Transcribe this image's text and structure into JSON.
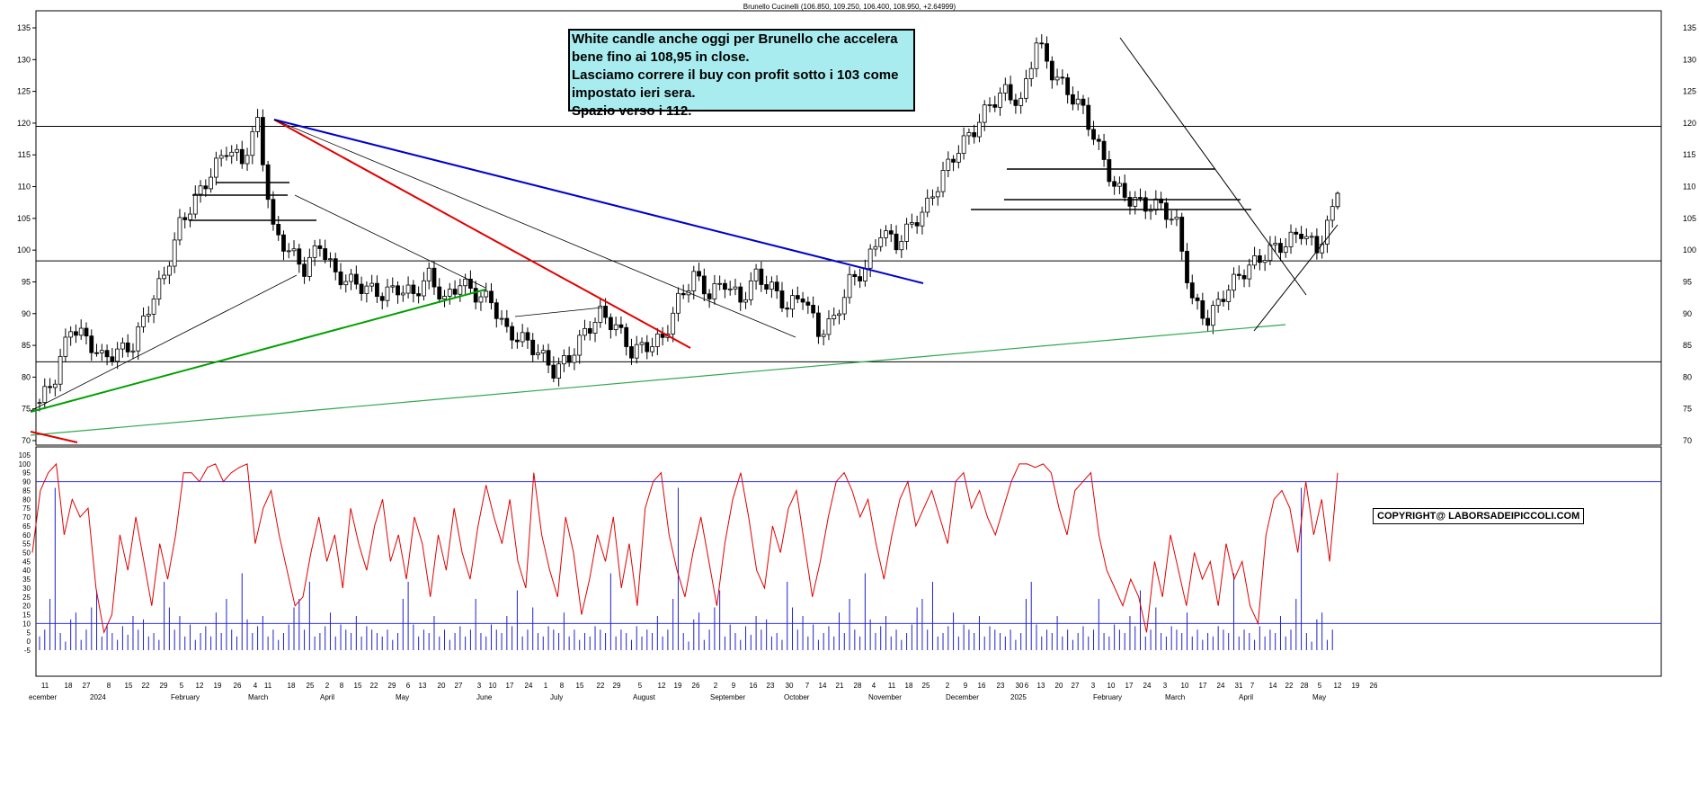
{
  "title": "Brunello Cucinelli (106.850, 109.250, 106.400, 108.950, +2.64999)",
  "annotation": {
    "lines": [
      "White candle anche oggi per Brunello che accelera",
      "bene fino ai 108,95 in close.",
      "Lasciamo correre il buy con profit sotto i 103 come",
      "impostato ieri sera.",
      "Spazio verso i 112."
    ]
  },
  "copyright": "COPYRIGHT@ LABORSADEIPICCOLI.COM",
  "chart_data": [
    {
      "type": "candlestick",
      "title": "Brunello Cucinelli (106.850, 109.250, 106.400, 108.950, +2.64999)",
      "y_ticks": [
        70,
        75,
        80,
        85,
        90,
        95,
        100,
        105,
        110,
        115,
        120,
        125,
        130,
        135
      ],
      "ylim": [
        68,
        137
      ],
      "horizontal_levels": [
        119.5,
        98.3,
        82.4
      ],
      "approx_close_path": [
        [
          0,
          76
        ],
        [
          3,
          80
        ],
        [
          6,
          88
        ],
        [
          9,
          86
        ],
        [
          12,
          83
        ],
        [
          15,
          84
        ],
        [
          18,
          85
        ],
        [
          21,
          91
        ],
        [
          24,
          96
        ],
        [
          27,
          104
        ],
        [
          30,
          108
        ],
        [
          33,
          112
        ],
        [
          36,
          116
        ],
        [
          39,
          114
        ],
        [
          42,
          120
        ],
        [
          45,
          103
        ],
        [
          48,
          100
        ],
        [
          51,
          97
        ],
        [
          54,
          101
        ],
        [
          57,
          96
        ],
        [
          60,
          95
        ],
        [
          63,
          94
        ],
        [
          66,
          93
        ],
        [
          69,
          94
        ],
        [
          72,
          93
        ],
        [
          75,
          96
        ],
        [
          78,
          92
        ],
        [
          81,
          95
        ],
        [
          84,
          93
        ],
        [
          87,
          92
        ],
        [
          90,
          87
        ],
        [
          93,
          86
        ],
        [
          96,
          84
        ],
        [
          99,
          81
        ],
        [
          102,
          83
        ],
        [
          105,
          87
        ],
        [
          108,
          90
        ],
        [
          111,
          88
        ],
        [
          114,
          84
        ],
        [
          117,
          85
        ],
        [
          120,
          86
        ],
        [
          123,
          92
        ],
        [
          126,
          96
        ],
        [
          129,
          93
        ],
        [
          132,
          95
        ],
        [
          135,
          92
        ],
        [
          138,
          96
        ],
        [
          141,
          94
        ],
        [
          144,
          91
        ],
        [
          147,
          93
        ],
        [
          150,
          87
        ],
        [
          153,
          89
        ],
        [
          156,
          95
        ],
        [
          159,
          97
        ],
        [
          162,
          103
        ],
        [
          165,
          101
        ],
        [
          168,
          104
        ],
        [
          171,
          107
        ],
        [
          174,
          112
        ],
        [
          177,
          116
        ],
        [
          180,
          119
        ],
        [
          183,
          123
        ],
        [
          186,
          125
        ],
        [
          189,
          123
        ],
        [
          192,
          133
        ],
        [
          195,
          128
        ],
        [
          198,
          125
        ],
        [
          201,
          122
        ],
        [
          204,
          116
        ],
        [
          207,
          110
        ],
        [
          210,
          108
        ],
        [
          213,
          107
        ],
        [
          216,
          107
        ],
        [
          219,
          104
        ],
        [
          222,
          92
        ],
        [
          225,
          89
        ],
        [
          228,
          93
        ],
        [
          231,
          96
        ],
        [
          234,
          98
        ],
        [
          237,
          100
        ],
        [
          240,
          101
        ],
        [
          243,
          103
        ],
        [
          246,
          100
        ],
        [
          249,
          106
        ],
        [
          250,
          108.95
        ]
      ],
      "last_candle": {
        "open": 106.85,
        "high": 109.25,
        "low": 106.4,
        "close": 108.95,
        "change": 2.64999
      }
    },
    {
      "type": "line",
      "y_ticks": [
        -5,
        0,
        5,
        10,
        15,
        20,
        25,
        30,
        35,
        40,
        45,
        50,
        55,
        60,
        65,
        70,
        75,
        80,
        85,
        90,
        95,
        100,
        105
      ],
      "ylim": [
        -6,
        106
      ],
      "reference_lines": [
        90,
        10
      ],
      "series": [
        {
          "values": [
            50,
            85,
            95,
            100,
            60,
            80,
            70,
            75,
            30,
            5,
            15,
            60,
            40,
            70,
            45,
            20,
            55,
            35,
            60,
            95,
            95,
            90,
            98,
            100,
            90,
            95,
            98,
            100,
            55,
            75,
            85,
            60,
            40,
            20,
            25,
            50,
            70,
            45,
            60,
            30,
            75,
            55,
            40,
            65,
            80,
            45,
            60,
            35,
            70,
            55,
            25,
            60,
            40,
            75,
            50,
            35,
            65,
            88,
            70,
            55,
            80,
            45,
            30,
            95,
            60,
            40,
            25,
            70,
            50,
            15,
            35,
            60,
            45,
            70,
            30,
            55,
            20,
            75,
            90,
            95,
            60,
            40,
            25,
            50,
            70,
            45,
            20,
            55,
            80,
            95,
            70,
            40,
            30,
            65,
            50,
            75,
            85,
            55,
            25,
            45,
            70,
            90,
            95,
            85,
            70,
            80,
            55,
            35,
            60,
            80,
            90,
            65,
            75,
            85,
            70,
            55,
            90,
            95,
            75,
            85,
            70,
            60,
            75,
            90,
            100,
            100,
            98,
            100,
            95,
            75,
            60,
            85,
            90,
            95,
            60,
            40,
            30,
            20,
            35,
            25,
            5,
            45,
            25,
            60,
            40,
            20,
            50,
            35,
            45,
            20,
            55,
            35,
            45,
            20,
            10,
            60,
            80,
            85,
            75,
            50,
            90,
            60,
            80,
            45,
            95
          ]
        },
        {
          "name": "",
          "values": [
            8,
            12,
            30,
            95,
            10,
            5,
            18,
            22,
            6,
            12,
            25,
            35,
            8,
            15,
            10,
            6,
            14,
            9,
            20,
            12,
            18,
            8,
            10,
            6,
            40,
            25,
            12,
            20,
            8,
            15,
            6,
            10,
            14,
            8,
            22,
            10,
            30,
            12,
            8,
            45,
            18,
            10,
            14,
            20,
            8,
            12,
            6,
            10,
            15,
            25,
            30,
            12,
            40,
            8,
            10,
            14,
            22,
            8,
            15,
            12,
            10,
            20,
            8,
            14,
            12,
            10,
            8,
            12,
            6,
            10,
            30,
            40,
            15,
            8,
            12,
            10,
            20,
            8,
            12,
            6,
            10,
            14,
            8,
            12,
            30,
            10,
            8,
            15,
            12,
            10,
            20,
            14,
            35,
            8,
            12,
            25,
            10,
            8,
            14,
            12,
            10,
            22,
            8,
            12,
            6,
            10,
            8,
            14,
            12,
            10,
            45,
            8,
            12,
            10,
            6,
            14,
            8,
            12,
            10,
            20
          ]
        }
      ]
    }
  ]
}
